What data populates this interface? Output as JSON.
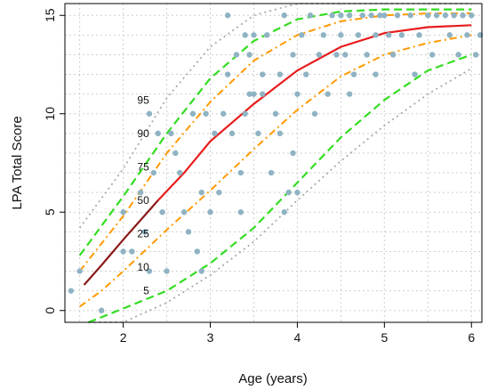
{
  "chart_data": {
    "type": "scatter",
    "title": "",
    "xlabel": "Age (years)",
    "ylabel": "LPA Total Score",
    "xlim": [
      1.33,
      6.12
    ],
    "ylim": [
      -0.6,
      15.6
    ],
    "xticks": [
      2,
      3,
      4,
      5,
      6
    ],
    "yticks": [
      0,
      5,
      10,
      15
    ],
    "grid": true,
    "colors": {
      "points": "#8fb3c3",
      "p5": "#a9a9a9",
      "p10": "#33dd22",
      "p25": "#ff9900",
      "p50_segment": "#8b1a1a",
      "p50": "#e81c1c"
    },
    "points": [
      [
        1.4,
        1
      ],
      [
        1.5,
        2
      ],
      [
        1.75,
        0
      ],
      [
        2.0,
        3
      ],
      [
        2.0,
        5
      ],
      [
        2.1,
        3
      ],
      [
        2.2,
        6
      ],
      [
        2.25,
        4
      ],
      [
        2.3,
        2
      ],
      [
        2.3,
        10
      ],
      [
        2.35,
        7
      ],
      [
        2.4,
        9
      ],
      [
        2.45,
        5
      ],
      [
        2.5,
        2
      ],
      [
        2.55,
        9
      ],
      [
        2.6,
        8
      ],
      [
        2.65,
        7
      ],
      [
        2.7,
        5
      ],
      [
        2.75,
        4
      ],
      [
        2.8,
        10
      ],
      [
        2.85,
        3
      ],
      [
        2.9,
        2
      ],
      [
        2.9,
        6
      ],
      [
        2.95,
        10
      ],
      [
        3.0,
        5
      ],
      [
        3.05,
        9
      ],
      [
        3.1,
        6
      ],
      [
        3.15,
        10
      ],
      [
        3.2,
        12
      ],
      [
        3.2,
        15
      ],
      [
        3.25,
        9
      ],
      [
        3.3,
        13
      ],
      [
        3.35,
        5
      ],
      [
        3.35,
        7
      ],
      [
        3.4,
        10
      ],
      [
        3.4,
        14
      ],
      [
        3.45,
        11
      ],
      [
        3.45,
        13
      ],
      [
        3.5,
        11
      ],
      [
        3.5,
        14
      ],
      [
        3.55,
        9
      ],
      [
        3.6,
        11
      ],
      [
        3.6,
        12
      ],
      [
        3.65,
        14
      ],
      [
        3.7,
        7
      ],
      [
        3.75,
        10
      ],
      [
        3.8,
        9
      ],
      [
        3.8,
        12
      ],
      [
        3.85,
        5
      ],
      [
        3.85,
        15
      ],
      [
        3.9,
        6
      ],
      [
        3.95,
        8
      ],
      [
        3.95,
        13
      ],
      [
        4.0,
        6
      ],
      [
        4.0,
        11
      ],
      [
        4.05,
        14
      ],
      [
        4.1,
        12
      ],
      [
        4.15,
        15
      ],
      [
        4.2,
        10
      ],
      [
        4.25,
        13
      ],
      [
        4.3,
        14
      ],
      [
        4.35,
        11
      ],
      [
        4.4,
        15
      ],
      [
        4.45,
        13
      ],
      [
        4.5,
        15
      ],
      [
        4.5,
        14
      ],
      [
        4.55,
        13
      ],
      [
        4.6,
        15
      ],
      [
        4.6,
        11
      ],
      [
        4.65,
        12
      ],
      [
        4.7,
        14
      ],
      [
        4.75,
        15
      ],
      [
        4.8,
        13
      ],
      [
        4.85,
        15
      ],
      [
        4.9,
        12
      ],
      [
        4.9,
        14
      ],
      [
        4.95,
        15
      ],
      [
        5.0,
        15
      ],
      [
        5.05,
        14
      ],
      [
        5.1,
        13
      ],
      [
        5.15,
        15
      ],
      [
        5.2,
        14
      ],
      [
        5.3,
        15
      ],
      [
        5.35,
        12
      ],
      [
        5.4,
        14
      ],
      [
        5.5,
        15
      ],
      [
        5.55,
        13
      ],
      [
        5.6,
        15
      ],
      [
        5.7,
        15
      ],
      [
        5.75,
        14
      ],
      [
        5.8,
        15
      ],
      [
        5.85,
        13
      ],
      [
        5.9,
        15
      ],
      [
        5.95,
        14
      ],
      [
        6.0,
        15
      ],
      [
        6.05,
        13
      ],
      [
        6.1,
        14
      ]
    ],
    "series": [
      {
        "name": "5",
        "x": [
          1.6,
          2.0,
          2.5,
          3.0,
          3.5,
          4.0,
          4.5,
          5.0,
          5.5,
          6.0
        ],
        "values": [
          -1.8,
          -0.6,
          0.4,
          1.8,
          3.5,
          5.6,
          7.6,
          9.4,
          11.0,
          12.3
        ]
      },
      {
        "name": "10",
        "x": [
          1.6,
          2.0,
          2.5,
          3.0,
          3.5,
          4.0,
          4.5,
          5.0,
          5.5,
          6.0
        ],
        "values": [
          -0.7,
          0.1,
          1.0,
          2.4,
          4.2,
          6.5,
          8.8,
          10.7,
          12.2,
          13.0
        ]
      },
      {
        "name": "25",
        "x": [
          1.5,
          1.75,
          2.0,
          2.5,
          3.0,
          3.5,
          4.0,
          4.5,
          5.0,
          5.5,
          6.0
        ],
        "values": [
          0.2,
          1.0,
          2.0,
          4.1,
          6.1,
          8.2,
          10.2,
          11.9,
          13.0,
          13.6,
          14.0
        ]
      },
      {
        "name": "50",
        "x": [
          1.55,
          1.75,
          2.0,
          2.2,
          2.4,
          2.7,
          3.0,
          3.5,
          4.0,
          4.5,
          5.0,
          5.5,
          6.0
        ],
        "values": [
          1.3,
          2.3,
          3.6,
          4.6,
          5.6,
          7.0,
          8.6,
          10.5,
          12.2,
          13.4,
          14.1,
          14.4,
          14.5
        ]
      },
      {
        "name": "75",
        "x": [
          1.5,
          2.0,
          2.5,
          3.0,
          3.5,
          4.0,
          4.5,
          5.0,
          5.5,
          6.0
        ],
        "values": [
          2.0,
          4.8,
          8.0,
          10.6,
          12.7,
          14.0,
          14.7,
          15.0,
          15.1,
          15.1
        ]
      },
      {
        "name": "90",
        "x": [
          1.5,
          2.0,
          2.5,
          3.0,
          3.5,
          4.0,
          4.5,
          5.0,
          5.5,
          6.0
        ],
        "values": [
          2.8,
          5.8,
          9.0,
          11.8,
          13.7,
          14.8,
          15.2,
          15.3,
          15.3,
          15.3
        ]
      },
      {
        "name": "95",
        "x": [
          1.5,
          2.0,
          2.5,
          3.0,
          3.5,
          4.0,
          4.5,
          5.0,
          5.5,
          6.0
        ],
        "values": [
          4.2,
          7.2,
          10.8,
          13.4,
          15.0,
          15.6,
          15.6,
          15.6,
          15.6,
          15.6
        ]
      }
    ],
    "line_labels": [
      {
        "text": "95",
        "x": 2.4,
        "y": 10.7
      },
      {
        "text": "90",
        "x": 2.4,
        "y": 9.0
      },
      {
        "text": "75",
        "x": 2.4,
        "y": 7.3
      },
      {
        "text": "50",
        "x": 2.4,
        "y": 5.6
      },
      {
        "text": "25",
        "x": 2.4,
        "y": 3.9
      },
      {
        "text": "10",
        "x": 2.4,
        "y": 2.2
      },
      {
        "text": "5",
        "x": 2.4,
        "y": 1.0
      }
    ]
  }
}
